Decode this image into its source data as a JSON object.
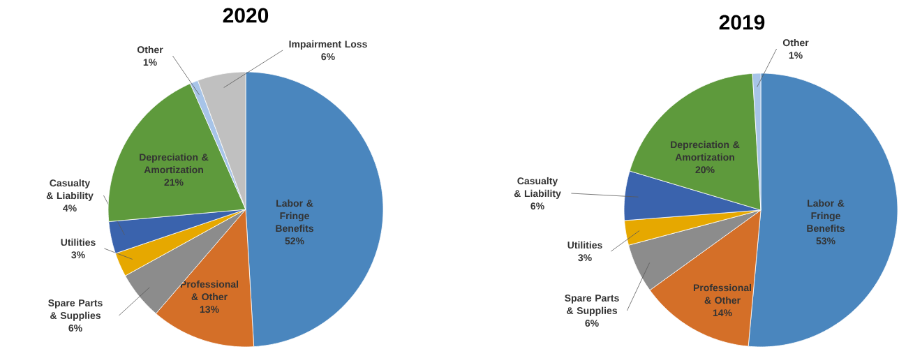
{
  "chart_data": [
    {
      "type": "pie",
      "title": "2020",
      "categories": [
        "Labor & Fringe Benefits",
        "Professional & Other",
        "Spare Parts & Supplies",
        "Utilities",
        "Casualty & Liability",
        "Depreciation & Amortization",
        "Other",
        "Impairment Loss"
      ],
      "values": [
        52,
        13,
        6,
        3,
        4,
        21,
        1,
        6
      ],
      "value_labels": [
        "52%",
        "13%",
        "6%",
        "3%",
        "4%",
        "21%",
        "1%",
        "6%"
      ],
      "colors": [
        "#4a86be",
        "#d46f28",
        "#8c8c8c",
        "#e6a800",
        "#3a63ad",
        "#5e9a3c",
        "#a7c4e8",
        "#c0c0c0"
      ]
    },
    {
      "type": "pie",
      "title": "2019",
      "categories": [
        "Labor & Fringe Benefits",
        "Professional & Other",
        "Spare Parts & Supplies",
        "Utilities",
        "Casualty & Liability",
        "Depreciation & Amortization",
        "Other"
      ],
      "values": [
        53,
        14,
        6,
        3,
        6,
        20,
        1
      ],
      "value_labels": [
        "53%",
        "14%",
        "6%",
        "3%",
        "6%",
        "20%",
        "1%"
      ],
      "colors": [
        "#4a86be",
        "#d46f28",
        "#8c8c8c",
        "#e6a800",
        "#3a63ad",
        "#5e9a3c",
        "#a7c4e8"
      ]
    }
  ]
}
